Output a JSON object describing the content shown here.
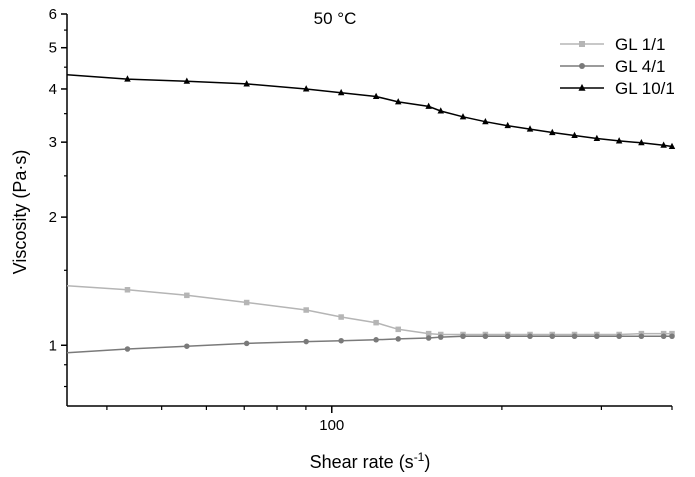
{
  "chart_data": {
    "type": "line",
    "title": "50 °C",
    "xlabel": "Shear rate (s",
    "xlabel_sup": "-1",
    "xlabel_end": ")",
    "ylabel": "Viscosity (Pa·s)",
    "x_scale": "log",
    "y_scale": "log",
    "xlim": [
      34,
      400
    ],
    "ylim": [
      0.72,
      6.0
    ],
    "x_tick_labels": [
      {
        "value": 100,
        "label": "100"
      }
    ],
    "y_tick_labels": [
      {
        "value": 1,
        "label": "1"
      },
      {
        "value": 2,
        "label": "2"
      },
      {
        "value": 3,
        "label": "3"
      },
      {
        "value": 4,
        "label": "4"
      },
      {
        "value": 5,
        "label": "5"
      },
      {
        "value": 6,
        "label": "6"
      }
    ],
    "legend_position": "top-right",
    "grid": false,
    "series": [
      {
        "name": "GL 1/1",
        "color": "#b5b5b5",
        "marker": "square",
        "x": [
          34,
          43.5,
          55.4,
          70.7,
          90.1,
          103.9,
          119.8,
          131.1,
          148.4,
          155.9,
          170.7,
          187.0,
          204.8,
          224.3,
          245.6,
          268.9,
          294.5,
          322.5,
          353.1,
          386.6,
          400
        ],
        "y": [
          1.38,
          1.35,
          1.31,
          1.26,
          1.21,
          1.165,
          1.13,
          1.09,
          1.065,
          1.06,
          1.06,
          1.06,
          1.06,
          1.06,
          1.06,
          1.06,
          1.06,
          1.06,
          1.065,
          1.065,
          1.065
        ]
      },
      {
        "name": "GL 4/1",
        "color": "#7a7a7a",
        "marker": "circle",
        "x": [
          34,
          43.5,
          55.4,
          70.7,
          90.1,
          103.9,
          119.8,
          131.1,
          148.4,
          155.9,
          170.7,
          187.0,
          204.8,
          224.3,
          245.6,
          268.9,
          294.5,
          322.5,
          353.1,
          386.6,
          400
        ],
        "y": [
          0.96,
          0.98,
          0.995,
          1.01,
          1.02,
          1.025,
          1.03,
          1.035,
          1.04,
          1.045,
          1.05,
          1.05,
          1.05,
          1.05,
          1.05,
          1.05,
          1.05,
          1.05,
          1.05,
          1.05,
          1.05
        ]
      },
      {
        "name": "GL 10/1",
        "color": "#000000",
        "marker": "triangle",
        "x": [
          34,
          43.5,
          55.4,
          70.7,
          90.1,
          103.9,
          119.8,
          131.1,
          148.4,
          155.9,
          170.7,
          187.0,
          204.8,
          224.3,
          245.6,
          268.9,
          294.5,
          322.5,
          353.1,
          386.6,
          400
        ],
        "y": [
          4.32,
          4.22,
          4.17,
          4.11,
          4.0,
          3.92,
          3.84,
          3.73,
          3.64,
          3.55,
          3.44,
          3.35,
          3.28,
          3.22,
          3.16,
          3.11,
          3.06,
          3.02,
          2.99,
          2.95,
          2.93
        ]
      }
    ]
  }
}
